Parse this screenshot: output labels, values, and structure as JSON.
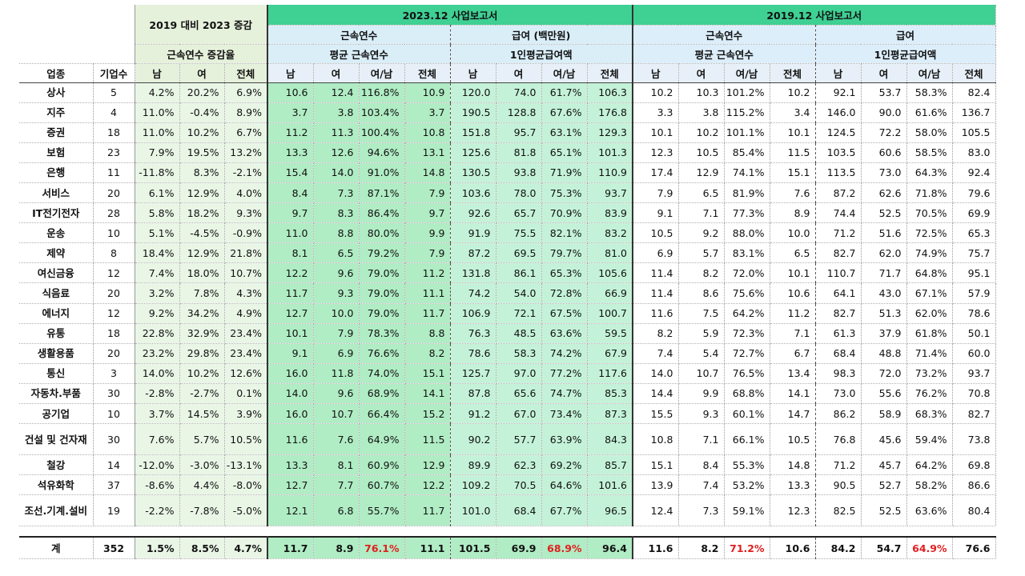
{
  "header": {
    "growth_title": "2019 대비 2023 증감",
    "growth_sub": "근속연수 증감율",
    "report_2023": "2023.12 사업보고서",
    "report_2019": "2019.12 사업보고서",
    "tenure_label": "근속연수",
    "tenure_sub": "평균 근속연수",
    "pay_label_2023": "급여 (백만원)",
    "pay_label_2019": "급여",
    "pay_sub": "1인평균급여액",
    "col_industry": "업종",
    "col_companies": "기업수",
    "col_male": "남",
    "col_female": "여",
    "col_total": "전체",
    "col_ratio": "여/남"
  },
  "rows": [
    {
      "name": "상사",
      "n": "5",
      "g": [
        "4.2%",
        "20.2%",
        "6.9%"
      ],
      "t23": [
        "10.6",
        "12.4",
        "116.8%",
        "10.9"
      ],
      "p23": [
        "120.0",
        "74.0",
        "61.7%",
        "106.3"
      ],
      "t19": [
        "10.2",
        "10.3",
        "101.2%",
        "10.2"
      ],
      "p19": [
        "92.1",
        "53.7",
        "58.3%",
        "82.4"
      ]
    },
    {
      "name": "지주",
      "n": "4",
      "g": [
        "11.0%",
        "-0.4%",
        "8.9%"
      ],
      "t23": [
        "3.7",
        "3.8",
        "103.4%",
        "3.7"
      ],
      "p23": [
        "190.5",
        "128.8",
        "67.6%",
        "176.8"
      ],
      "t19": [
        "3.3",
        "3.8",
        "115.2%",
        "3.4"
      ],
      "p19": [
        "146.0",
        "90.0",
        "61.6%",
        "136.7"
      ]
    },
    {
      "name": "증권",
      "n": "18",
      "g": [
        "11.0%",
        "10.2%",
        "6.7%"
      ],
      "t23": [
        "11.2",
        "11.3",
        "100.4%",
        "10.8"
      ],
      "p23": [
        "151.8",
        "95.7",
        "63.1%",
        "129.3"
      ],
      "t19": [
        "10.1",
        "10.2",
        "101.1%",
        "10.1"
      ],
      "p19": [
        "124.5",
        "72.2",
        "58.0%",
        "105.5"
      ]
    },
    {
      "name": "보험",
      "n": "23",
      "g": [
        "7.9%",
        "19.5%",
        "13.2%"
      ],
      "t23": [
        "13.3",
        "12.6",
        "94.6%",
        "13.1"
      ],
      "p23": [
        "125.6",
        "81.8",
        "65.1%",
        "101.3"
      ],
      "t19": [
        "12.3",
        "10.5",
        "85.4%",
        "11.5"
      ],
      "p19": [
        "103.5",
        "60.6",
        "58.5%",
        "83.0"
      ]
    },
    {
      "name": "은행",
      "n": "11",
      "g": [
        "-11.8%",
        "8.3%",
        "-2.1%"
      ],
      "t23": [
        "15.4",
        "14.0",
        "91.0%",
        "14.8"
      ],
      "p23": [
        "130.5",
        "93.8",
        "71.9%",
        "110.9"
      ],
      "t19": [
        "17.4",
        "12.9",
        "74.1%",
        "15.1"
      ],
      "p19": [
        "113.5",
        "73.0",
        "64.3%",
        "92.4"
      ]
    },
    {
      "name": "서비스",
      "n": "20",
      "g": [
        "6.1%",
        "12.9%",
        "4.0%"
      ],
      "t23": [
        "8.4",
        "7.3",
        "87.1%",
        "7.9"
      ],
      "p23": [
        "103.6",
        "78.0",
        "75.3%",
        "93.7"
      ],
      "t19": [
        "7.9",
        "6.5",
        "81.9%",
        "7.6"
      ],
      "p19": [
        "87.2",
        "62.6",
        "71.8%",
        "79.6"
      ]
    },
    {
      "name": "IT전기전자",
      "n": "28",
      "g": [
        "5.8%",
        "18.2%",
        "9.3%"
      ],
      "t23": [
        "9.7",
        "8.3",
        "86.4%",
        "9.7"
      ],
      "p23": [
        "92.6",
        "65.7",
        "70.9%",
        "83.9"
      ],
      "t19": [
        "9.1",
        "7.1",
        "77.3%",
        "8.9"
      ],
      "p19": [
        "74.4",
        "52.5",
        "70.5%",
        "69.9"
      ]
    },
    {
      "name": "운송",
      "n": "10",
      "g": [
        "5.1%",
        "-4.5%",
        "-0.9%"
      ],
      "t23": [
        "11.0",
        "8.8",
        "80.0%",
        "9.9"
      ],
      "p23": [
        "91.9",
        "75.5",
        "82.1%",
        "83.2"
      ],
      "t19": [
        "10.5",
        "9.2",
        "88.0%",
        "10.0"
      ],
      "p19": [
        "71.2",
        "51.6",
        "72.5%",
        "65.3"
      ]
    },
    {
      "name": "제약",
      "n": "8",
      "g": [
        "18.4%",
        "12.9%",
        "21.8%"
      ],
      "t23": [
        "8.1",
        "6.5",
        "79.2%",
        "7.9"
      ],
      "p23": [
        "87.2",
        "69.5",
        "79.7%",
        "81.0"
      ],
      "t19": [
        "6.9",
        "5.7",
        "83.1%",
        "6.5"
      ],
      "p19": [
        "82.7",
        "62.0",
        "74.9%",
        "75.7"
      ]
    },
    {
      "name": "여신금융",
      "n": "12",
      "g": [
        "7.4%",
        "18.0%",
        "10.7%"
      ],
      "t23": [
        "12.2",
        "9.6",
        "79.0%",
        "11.2"
      ],
      "p23": [
        "131.8",
        "86.1",
        "65.3%",
        "105.6"
      ],
      "t19": [
        "11.4",
        "8.2",
        "72.0%",
        "10.1"
      ],
      "p19": [
        "110.7",
        "71.7",
        "64.8%",
        "95.1"
      ]
    },
    {
      "name": "식음료",
      "n": "20",
      "g": [
        "3.2%",
        "7.8%",
        "4.3%"
      ],
      "t23": [
        "11.7",
        "9.3",
        "79.0%",
        "11.1"
      ],
      "p23": [
        "74.2",
        "54.0",
        "72.8%",
        "66.9"
      ],
      "t19": [
        "11.4",
        "8.6",
        "75.6%",
        "10.6"
      ],
      "p19": [
        "64.1",
        "43.0",
        "67.1%",
        "57.9"
      ]
    },
    {
      "name": "에너지",
      "n": "12",
      "g": [
        "9.2%",
        "34.2%",
        "4.9%"
      ],
      "t23": [
        "12.7",
        "10.0",
        "79.0%",
        "11.7"
      ],
      "p23": [
        "106.9",
        "72.1",
        "67.5%",
        "100.7"
      ],
      "t19": [
        "11.6",
        "7.5",
        "64.2%",
        "11.2"
      ],
      "p19": [
        "82.7",
        "51.3",
        "62.0%",
        "78.6"
      ]
    },
    {
      "name": "유통",
      "n": "18",
      "g": [
        "22.8%",
        "32.9%",
        "23.4%"
      ],
      "t23": [
        "10.1",
        "7.9",
        "78.3%",
        "8.8"
      ],
      "p23": [
        "76.3",
        "48.5",
        "63.6%",
        "59.5"
      ],
      "t19": [
        "8.2",
        "5.9",
        "72.3%",
        "7.1"
      ],
      "p19": [
        "61.3",
        "37.9",
        "61.8%",
        "50.1"
      ]
    },
    {
      "name": "생활용품",
      "n": "20",
      "g": [
        "23.2%",
        "29.8%",
        "23.4%"
      ],
      "t23": [
        "9.1",
        "6.9",
        "76.6%",
        "8.2"
      ],
      "p23": [
        "78.6",
        "58.3",
        "74.2%",
        "67.9"
      ],
      "t19": [
        "7.4",
        "5.4",
        "72.7%",
        "6.7"
      ],
      "p19": [
        "68.4",
        "48.8",
        "71.4%",
        "60.0"
      ]
    },
    {
      "name": "통신",
      "n": "3",
      "g": [
        "14.0%",
        "10.2%",
        "12.6%"
      ],
      "t23": [
        "16.0",
        "11.8",
        "74.0%",
        "15.1"
      ],
      "p23": [
        "125.7",
        "97.0",
        "77.2%",
        "117.6"
      ],
      "t19": [
        "14.0",
        "10.7",
        "76.5%",
        "13.4"
      ],
      "p19": [
        "98.3",
        "72.0",
        "73.2%",
        "93.7"
      ]
    },
    {
      "name": "자동차.부품",
      "n": "30",
      "g": [
        "-2.8%",
        "-2.7%",
        "0.1%"
      ],
      "t23": [
        "14.0",
        "9.6",
        "68.9%",
        "14.1"
      ],
      "p23": [
        "87.8",
        "65.6",
        "74.7%",
        "85.3"
      ],
      "t19": [
        "14.4",
        "9.9",
        "68.8%",
        "14.1"
      ],
      "p19": [
        "73.0",
        "55.6",
        "76.2%",
        "70.8"
      ]
    },
    {
      "name": "공기업",
      "n": "10",
      "g": [
        "3.7%",
        "14.5%",
        "3.9%"
      ],
      "t23": [
        "16.0",
        "10.7",
        "66.4%",
        "15.2"
      ],
      "p23": [
        "91.2",
        "67.0",
        "73.4%",
        "87.3"
      ],
      "t19": [
        "15.5",
        "9.3",
        "60.1%",
        "14.7"
      ],
      "p19": [
        "86.2",
        "58.9",
        "68.3%",
        "82.7"
      ]
    },
    {
      "name": "건설 및 건자재",
      "n": "30",
      "g": [
        "7.6%",
        "5.7%",
        "10.5%"
      ],
      "t23": [
        "11.6",
        "7.6",
        "64.9%",
        "11.5"
      ],
      "p23": [
        "90.2",
        "57.7",
        "63.9%",
        "84.3"
      ],
      "t19": [
        "10.8",
        "7.1",
        "66.1%",
        "10.5"
      ],
      "p19": [
        "76.8",
        "45.6",
        "59.4%",
        "73.8"
      ]
    },
    {
      "name": "철강",
      "n": "14",
      "g": [
        "-12.0%",
        "-3.0%",
        "-13.1%"
      ],
      "t23": [
        "13.3",
        "8.1",
        "60.9%",
        "12.9"
      ],
      "p23": [
        "89.9",
        "62.3",
        "69.2%",
        "85.7"
      ],
      "t19": [
        "15.1",
        "8.4",
        "55.3%",
        "14.8"
      ],
      "p19": [
        "71.2",
        "45.7",
        "64.2%",
        "69.8"
      ]
    },
    {
      "name": "석유화학",
      "n": "37",
      "g": [
        "-8.6%",
        "4.4%",
        "-8.0%"
      ],
      "t23": [
        "12.7",
        "7.7",
        "60.7%",
        "12.2"
      ],
      "p23": [
        "109.2",
        "70.5",
        "64.6%",
        "101.6"
      ],
      "t19": [
        "13.9",
        "7.4",
        "53.2%",
        "13.3"
      ],
      "p19": [
        "90.5",
        "52.7",
        "58.2%",
        "86.6"
      ]
    },
    {
      "name": "조선.기계.설비",
      "n": "19",
      "g": [
        "-2.2%",
        "-7.8%",
        "-5.0%"
      ],
      "t23": [
        "12.1",
        "6.8",
        "55.7%",
        "11.7"
      ],
      "p23": [
        "101.0",
        "68.4",
        "67.7%",
        "96.5"
      ],
      "t19": [
        "12.4",
        "7.3",
        "59.1%",
        "12.3"
      ],
      "p19": [
        "82.5",
        "52.5",
        "63.6%",
        "80.4"
      ]
    }
  ],
  "total": {
    "name": "계",
    "n": "352",
    "g": [
      "1.5%",
      "8.5%",
      "4.7%"
    ],
    "t23": [
      "11.7",
      "8.9",
      "76.1%",
      "11.1"
    ],
    "p23": [
      "101.5",
      "69.9",
      "68.9%",
      "96.4"
    ],
    "t19": [
      "11.6",
      "8.2",
      "71.2%",
      "10.6"
    ],
    "p19": [
      "84.2",
      "54.7",
      "64.9%",
      "76.6"
    ]
  },
  "colors": {
    "accent_ratio": "#e02020",
    "header_green": "#3fd094",
    "growth_bg": "#e6f1dc"
  }
}
